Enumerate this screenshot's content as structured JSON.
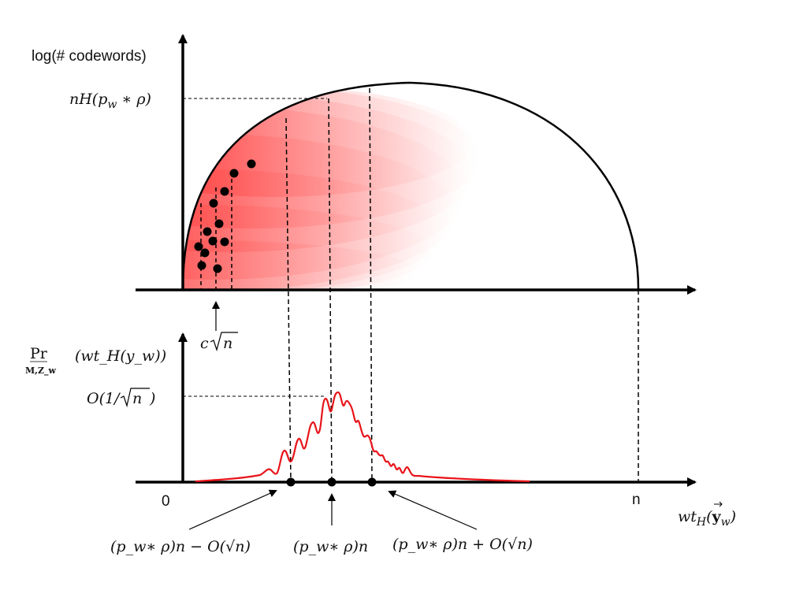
{
  "top_plot": {
    "y_axis_label": "log(# codewords)",
    "peak_label": "nH(p_w * ρ)",
    "sqrt_label_c": "c",
    "sqrt_label_n": "n"
  },
  "bottom_plot": {
    "y_axis_label_pr": "Pr",
    "y_axis_label_sub": "M,Z_w",
    "y_axis_label_rest": "(wt_H(y_w))",
    "peak_label_prefix": "O(1/",
    "peak_label_n": "n",
    "peak_label_suffix": ")",
    "x_axis_label": "wt_H(y_w)",
    "origin_label": "0",
    "n_label": "n"
  },
  "annotations": {
    "left": "(p_w∗ ρ)n − O(√n)",
    "center": "(p_w∗ ρ)n",
    "right": "(p_w∗ ρ)n + O(√n)"
  },
  "colors": {
    "axis": "#000000",
    "density_curve": "#e8141a",
    "shading": "#ff2a2a"
  }
}
